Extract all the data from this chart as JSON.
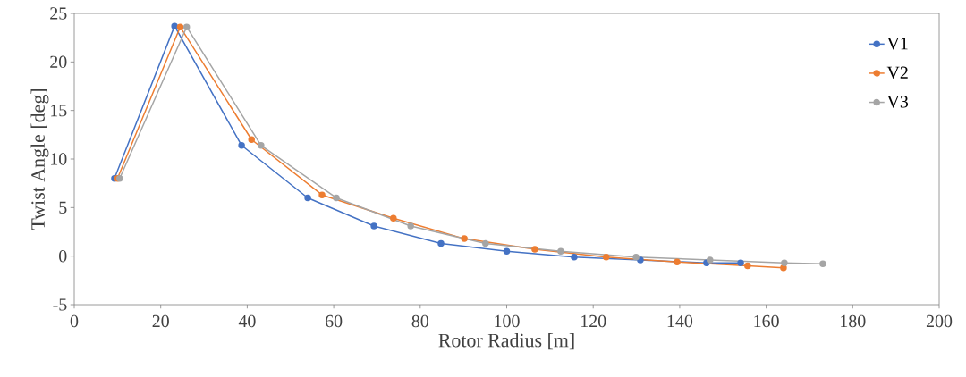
{
  "chart_data": {
    "type": "line",
    "xlabel": "Rotor Radius [m]",
    "ylabel": "Twist Angle [deg]",
    "xlim": [
      0,
      200
    ],
    "ylim": [
      -5,
      25
    ],
    "xticks": [
      0,
      20,
      40,
      60,
      80,
      100,
      120,
      140,
      160,
      180,
      200
    ],
    "yticks": [
      -5,
      0,
      5,
      10,
      15,
      20,
      25
    ],
    "grid": false,
    "legend": "top right",
    "marker": "circle",
    "line_style": "solid",
    "series": [
      {
        "name": "V1",
        "color": "#4472c4",
        "x": [
          9.3,
          23.2,
          38.7,
          54,
          69.3,
          84.8,
          100,
          115.6,
          130.9,
          146.2,
          154.1
        ],
        "values": [
          8,
          23.7,
          11.4,
          6,
          3.1,
          1.3,
          0.5,
          -0.1,
          -0.4,
          -0.7,
          -0.7
        ]
      },
      {
        "name": "V2",
        "color": "#ed7d31",
        "x": [
          10,
          24.5,
          41,
          57.3,
          73.8,
          90.2,
          106.5,
          123,
          139.4,
          155.7,
          164
        ],
        "values": [
          8,
          23.6,
          12,
          6.3,
          3.9,
          1.8,
          0.7,
          -0.1,
          -0.6,
          -1,
          -1.2
        ]
      },
      {
        "name": "V3",
        "color": "#a5a5a5",
        "x": [
          10.5,
          26,
          43.2,
          60.6,
          77.8,
          95.1,
          112.5,
          129.9,
          147,
          164.2,
          173.1
        ],
        "values": [
          8,
          23.6,
          11.4,
          6,
          3.1,
          1.3,
          0.5,
          -0.1,
          -0.4,
          -0.7,
          -0.8
        ]
      }
    ]
  }
}
